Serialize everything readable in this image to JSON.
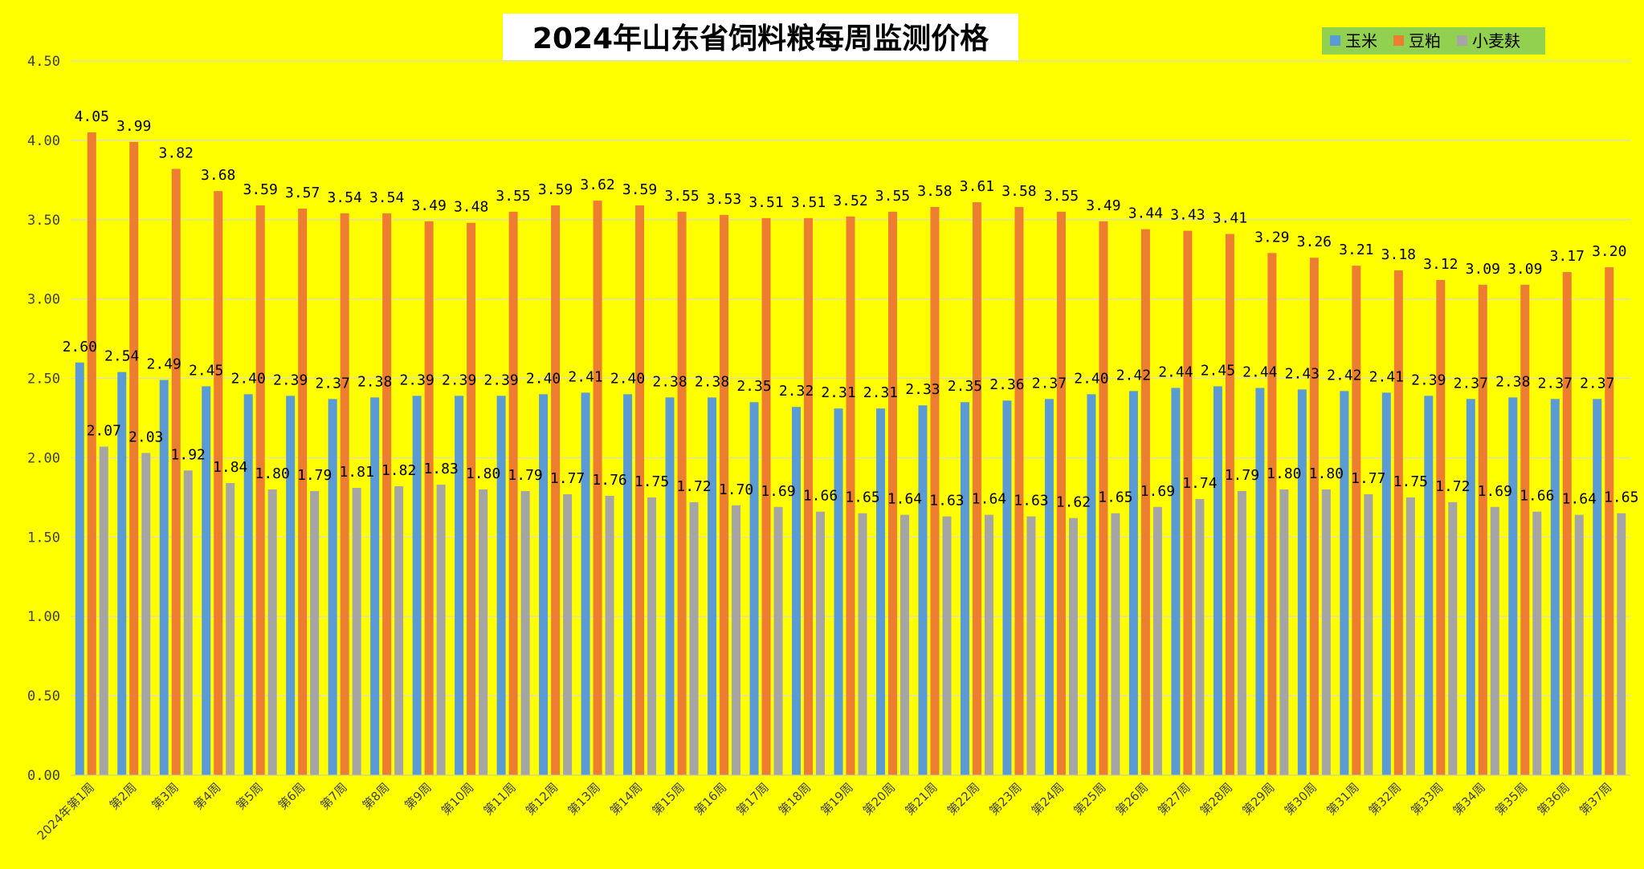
{
  "chart_data": {
    "type": "bar",
    "title": "2024年山东省饲料粮每周监测价格",
    "categories": [
      "2024年第1周",
      "第2周",
      "第3周",
      "第4周",
      "第5周",
      "第6周",
      "第7周",
      "第8周",
      "第9周",
      "第10周",
      "第11周",
      "第12周",
      "第13周",
      "第14周",
      "第15周",
      "第16周",
      "第17周",
      "第18周",
      "第19周",
      "第20周",
      "第21周",
      "第22周",
      "第23周",
      "第24周",
      "第25周",
      "第26周",
      "第27周",
      "第28周",
      "第29周",
      "第30周",
      "第31周",
      "第32周",
      "第33周",
      "第34周",
      "第35周",
      "第36周",
      "第37周"
    ],
    "series": [
      {
        "name": "玉米",
        "color": "#5b9bd5",
        "values": [
          2.6,
          2.54,
          2.49,
          2.45,
          2.4,
          2.39,
          2.37,
          2.38,
          2.39,
          2.39,
          2.39,
          2.4,
          2.41,
          2.4,
          2.38,
          2.38,
          2.35,
          2.32,
          2.31,
          2.31,
          2.33,
          2.35,
          2.36,
          2.37,
          2.4,
          2.42,
          2.44,
          2.45,
          2.44,
          2.43,
          2.42,
          2.41,
          2.39,
          2.37,
          2.38,
          2.37,
          2.37
        ]
      },
      {
        "name": "豆粕",
        "color": "#ed7d31",
        "values": [
          4.05,
          3.99,
          3.82,
          3.68,
          3.59,
          3.57,
          3.54,
          3.54,
          3.49,
          3.48,
          3.55,
          3.59,
          3.62,
          3.59,
          3.55,
          3.53,
          3.51,
          3.51,
          3.52,
          3.55,
          3.58,
          3.61,
          3.58,
          3.55,
          3.49,
          3.44,
          3.43,
          3.41,
          3.29,
          3.26,
          3.21,
          3.18,
          3.12,
          3.09,
          3.09,
          3.17,
          3.2
        ]
      },
      {
        "name": "小麦麸",
        "color": "#a5a5a5",
        "values": [
          2.07,
          2.03,
          1.92,
          1.84,
          1.8,
          1.79,
          1.81,
          1.82,
          1.83,
          1.8,
          1.79,
          1.77,
          1.76,
          1.75,
          1.72,
          1.7,
          1.69,
          1.66,
          1.65,
          1.64,
          1.63,
          1.64,
          1.63,
          1.62,
          1.65,
          1.69,
          1.74,
          1.79,
          1.8,
          1.8,
          1.77,
          1.75,
          1.72,
          1.69,
          1.66,
          1.64,
          1.65
        ]
      }
    ],
    "ylim": [
      0,
      4.5
    ],
    "yticks": [
      "0.00",
      "0.50",
      "1.00",
      "1.50",
      "2.00",
      "2.50",
      "3.00",
      "3.50",
      "4.00",
      "4.50"
    ],
    "grid": true,
    "legend_position": "top-right",
    "background": "#ffff00"
  }
}
